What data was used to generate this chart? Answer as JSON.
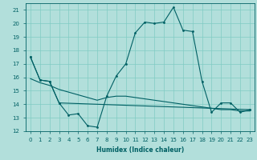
{
  "xlabel": "Humidex (Indice chaleur)",
  "bg_color": "#b2dfdb",
  "grid_color": "#80cbc4",
  "line_color": "#006064",
  "ylim": [
    12,
    21.5
  ],
  "xlim": [
    -0.5,
    23.5
  ],
  "yticks": [
    12,
    13,
    14,
    15,
    16,
    17,
    18,
    19,
    20,
    21
  ],
  "xticks": [
    0,
    1,
    2,
    3,
    4,
    5,
    6,
    7,
    8,
    9,
    10,
    11,
    12,
    13,
    14,
    15,
    16,
    17,
    18,
    19,
    20,
    21,
    22,
    23
  ],
  "line1_x": [
    0,
    1,
    2,
    3,
    4,
    5,
    6,
    7,
    8,
    9,
    10,
    11,
    12,
    13,
    14,
    15,
    16,
    17,
    18,
    19,
    20,
    21,
    22,
    23
  ],
  "line1_y": [
    17.5,
    15.8,
    15.7,
    14.1,
    13.2,
    13.3,
    12.4,
    12.3,
    14.6,
    16.1,
    17.0,
    19.3,
    20.1,
    20.0,
    20.1,
    21.2,
    19.5,
    19.4,
    15.7,
    13.4,
    14.1,
    14.1,
    13.4,
    13.6
  ],
  "line2_x": [
    0,
    1,
    2,
    3,
    4,
    5,
    6,
    7,
    8,
    9,
    10,
    11,
    12,
    13,
    14,
    15,
    16,
    17,
    18,
    19,
    20,
    21,
    22,
    23
  ],
  "line2_y": [
    15.9,
    15.6,
    15.4,
    15.1,
    14.9,
    14.7,
    14.5,
    14.3,
    14.5,
    14.6,
    14.6,
    14.5,
    14.4,
    14.3,
    14.2,
    14.1,
    14.0,
    13.9,
    13.8,
    13.7,
    13.6,
    13.6,
    13.5,
    13.5
  ],
  "line3_x": [
    0,
    1,
    2,
    3,
    23
  ],
  "line3_y": [
    17.5,
    15.8,
    15.7,
    14.1,
    13.6
  ],
  "xlabel_fontsize": 5.5,
  "tick_fontsize": 5.0
}
